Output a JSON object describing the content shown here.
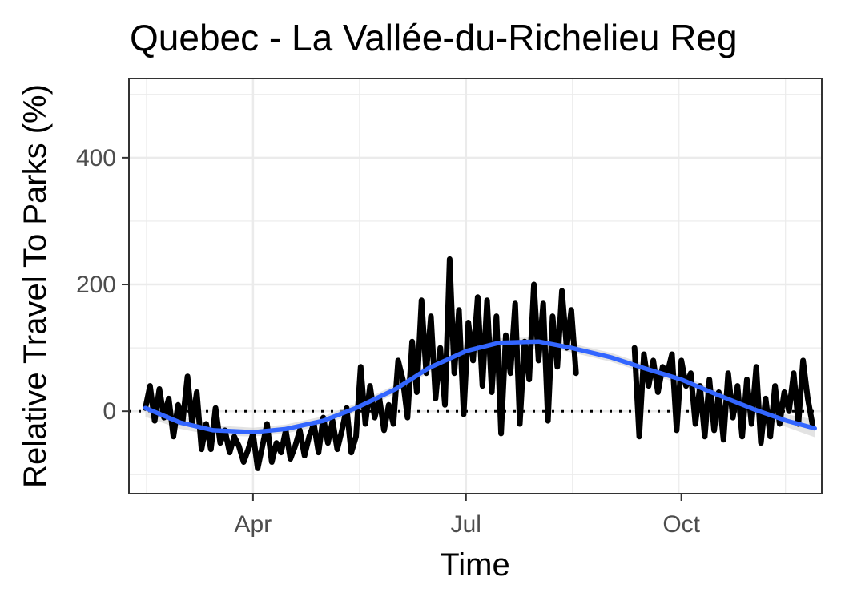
{
  "chart_data": {
    "type": "line",
    "title": "Quebec - La Vallée-du-Richelieu Reg",
    "xlabel": "Time",
    "ylabel": "Relative Travel To Parks (%)",
    "x_type": "date",
    "xlim": [
      "2020-02-08",
      "2020-11-30"
    ],
    "ylim": [
      -130,
      525
    ],
    "x_ticks": [
      {
        "date": "2020-04-01",
        "label": "Apr"
      },
      {
        "date": "2020-07-01",
        "label": "Jul"
      },
      {
        "date": "2020-10-01",
        "label": "Oct"
      }
    ],
    "y_ticks": [
      0,
      200,
      400
    ],
    "reference_line": {
      "y": 0,
      "style": "dotted",
      "color": "#000000"
    },
    "grid": true,
    "colors": {
      "observed": "#000000",
      "smooth": "#3366ff",
      "ribbon": "#cccccc",
      "grid": "#ebebeb",
      "panel_border": "#333333"
    },
    "series": [
      {
        "type": "line",
        "x": [
          "2020-02-15",
          "2020-02-17",
          "2020-02-19",
          "2020-02-21",
          "2020-02-23",
          "2020-02-25",
          "2020-02-27",
          "2020-02-29",
          "2020-03-02",
          "2020-03-04",
          "2020-03-06",
          "2020-03-08",
          "2020-03-10",
          "2020-03-12",
          "2020-03-14",
          "2020-03-16",
          "2020-03-18",
          "2020-03-20",
          "2020-03-22",
          "2020-03-24",
          "2020-03-26",
          "2020-03-28",
          "2020-03-30",
          "2020-04-01",
          "2020-04-03",
          "2020-04-05",
          "2020-04-07",
          "2020-04-09",
          "2020-04-11",
          "2020-04-13",
          "2020-04-15",
          "2020-04-17",
          "2020-04-19",
          "2020-04-21",
          "2020-04-23",
          "2020-04-25",
          "2020-04-27",
          "2020-04-29",
          "2020-05-01",
          "2020-05-03",
          "2020-05-05",
          "2020-05-07",
          "2020-05-09",
          "2020-05-11",
          "2020-05-13",
          "2020-05-15",
          "2020-05-17",
          "2020-05-19",
          "2020-05-21",
          "2020-05-23",
          "2020-05-25",
          "2020-05-27",
          "2020-05-29",
          "2020-05-31",
          "2020-06-02",
          "2020-06-04",
          "2020-06-06",
          "2020-06-08",
          "2020-06-10",
          "2020-06-12",
          "2020-06-14",
          "2020-06-16",
          "2020-06-18",
          "2020-06-20",
          "2020-06-22",
          "2020-06-24",
          "2020-06-26",
          "2020-06-28",
          "2020-06-30",
          "2020-07-02",
          "2020-07-04",
          "2020-07-06",
          "2020-07-08",
          "2020-07-10",
          "2020-07-12",
          "2020-07-14",
          "2020-07-16",
          "2020-07-18",
          "2020-07-20",
          "2020-07-22",
          "2020-07-24",
          "2020-07-26",
          "2020-07-28",
          "2020-07-30",
          "2020-08-01",
          "2020-08-03",
          "2020-08-05",
          "2020-08-07",
          "2020-08-09",
          "2020-08-11",
          "2020-08-13",
          "2020-08-15",
          "2020-08-17"
        ],
        "y": [
          5,
          40,
          -15,
          35,
          -10,
          20,
          -40,
          10,
          -15,
          55,
          -20,
          30,
          -60,
          -20,
          -60,
          5,
          -50,
          -30,
          -65,
          -40,
          -55,
          -80,
          -60,
          -35,
          -90,
          -55,
          -20,
          -80,
          -50,
          -65,
          -30,
          -75,
          -55,
          -30,
          -70,
          -40,
          -20,
          -65,
          -10,
          -50,
          -15,
          -60,
          -30,
          5,
          -65,
          -40,
          70,
          -20,
          40,
          -10,
          20,
          -30,
          10,
          -20,
          80,
          50,
          -10,
          110,
          30,
          175,
          60,
          150,
          20,
          100,
          10,
          240,
          60,
          160,
          -5,
          140,
          80,
          180,
          40,
          175,
          30,
          150,
          -35,
          120,
          60,
          170,
          -20,
          110,
          50,
          200,
          80,
          170,
          -15,
          150,
          70,
          190,
          100,
          160,
          60
        ],
        "color": "#000000"
      },
      {
        "type": "line",
        "x": [
          "2020-09-11",
          "2020-09-13",
          "2020-09-15",
          "2020-09-17",
          "2020-09-19",
          "2020-09-21",
          "2020-09-23",
          "2020-09-25",
          "2020-09-27",
          "2020-09-29",
          "2020-10-01",
          "2020-10-03",
          "2020-10-05",
          "2020-10-07",
          "2020-10-09",
          "2020-10-11",
          "2020-10-13",
          "2020-10-15",
          "2020-10-17",
          "2020-10-19",
          "2020-10-21",
          "2020-10-23",
          "2020-10-25",
          "2020-10-27",
          "2020-10-29",
          "2020-10-31",
          "2020-11-02",
          "2020-11-04",
          "2020-11-06",
          "2020-11-08",
          "2020-11-10",
          "2020-11-12",
          "2020-11-14",
          "2020-11-16",
          "2020-11-18",
          "2020-11-20",
          "2020-11-22",
          "2020-11-24",
          "2020-11-26"
        ],
        "y": [
          100,
          -40,
          90,
          40,
          80,
          30,
          70,
          60,
          90,
          -30,
          80,
          40,
          60,
          -20,
          40,
          -40,
          50,
          -30,
          30,
          -45,
          60,
          -10,
          40,
          -40,
          50,
          -20,
          70,
          -50,
          20,
          -40,
          40,
          -20,
          30,
          0,
          60,
          -20,
          80,
          20,
          -20
        ],
        "color": "#000000"
      },
      {
        "type": "smooth",
        "x": [
          "2020-02-15",
          "2020-03-01",
          "2020-03-15",
          "2020-04-01",
          "2020-04-15",
          "2020-05-01",
          "2020-05-15",
          "2020-06-01",
          "2020-06-15",
          "2020-07-01",
          "2020-07-15",
          "2020-08-01",
          "2020-08-15",
          "2020-09-01",
          "2020-09-15",
          "2020-10-01",
          "2020-10-15",
          "2020-11-01",
          "2020-11-15",
          "2020-11-27"
        ],
        "y": [
          5,
          -18,
          -30,
          -33,
          -28,
          -15,
          5,
          35,
          68,
          95,
          108,
          110,
          100,
          85,
          68,
          50,
          28,
          3,
          -15,
          -27
        ],
        "ci_halfwidth": [
          14,
          10,
          8,
          7,
          7,
          7,
          7,
          7,
          7,
          7,
          7,
          7,
          7,
          7,
          7,
          7,
          7,
          8,
          10,
          14
        ],
        "color": "#3366ff"
      }
    ]
  }
}
